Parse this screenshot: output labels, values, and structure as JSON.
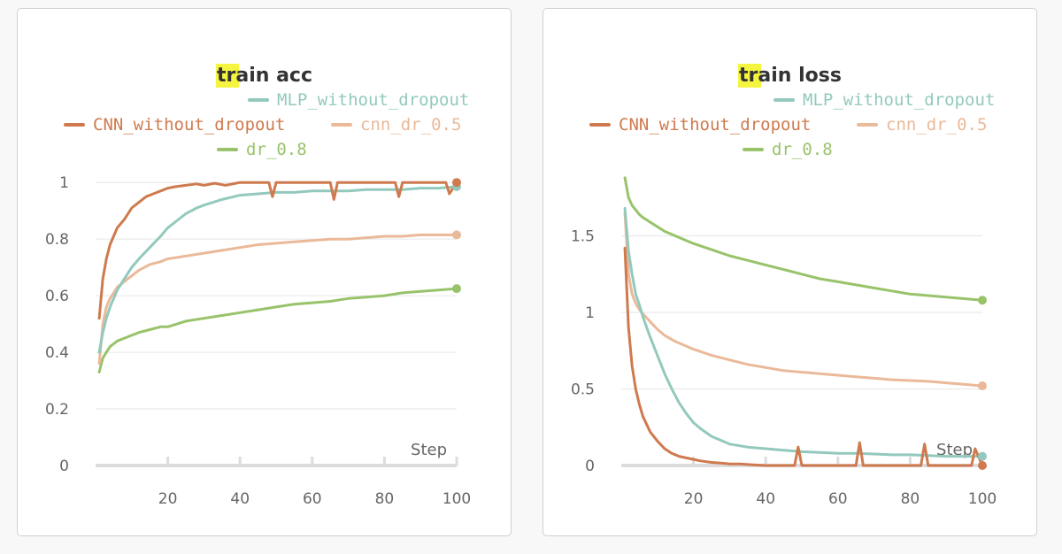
{
  "colors": {
    "MLP_without_dropout": "#93c9bd",
    "CNN_without_dropout": "#cf7a4e",
    "cnn_dr_0.5": "#eab999",
    "dr_0.8": "#98c36a",
    "highlight": "#f5f541"
  },
  "chart_data": [
    {
      "type": "line",
      "title": "train acc",
      "title_highlight": "tr",
      "title_rest": "ain acc",
      "xlabel": "Step",
      "ylabel": "",
      "xlim": [
        0,
        100
      ],
      "ylim": [
        0,
        1.06
      ],
      "xticks": [
        20,
        40,
        60,
        80,
        100
      ],
      "yticks": [
        0,
        0.2,
        0.4,
        0.6,
        0.8,
        1
      ],
      "ytick_labels": [
        "0",
        "0.2",
        "0.4",
        "0.6",
        "0.8",
        "1"
      ],
      "grid": true,
      "legend": "top-center",
      "series": [
        {
          "name": "MLP_without_dropout",
          "x": [
            1,
            2,
            3,
            4,
            5,
            6,
            8,
            10,
            12,
            15,
            18,
            20,
            22,
            25,
            28,
            30,
            35,
            40,
            45,
            50,
            55,
            60,
            65,
            70,
            75,
            80,
            85,
            90,
            95,
            100
          ],
          "y": [
            0.4,
            0.47,
            0.52,
            0.56,
            0.59,
            0.62,
            0.66,
            0.7,
            0.73,
            0.77,
            0.81,
            0.84,
            0.86,
            0.89,
            0.91,
            0.92,
            0.94,
            0.955,
            0.96,
            0.965,
            0.965,
            0.97,
            0.97,
            0.97,
            0.975,
            0.975,
            0.975,
            0.98,
            0.98,
            0.985
          ]
        },
        {
          "name": "CNN_without_dropout",
          "x": [
            1,
            2,
            3,
            4,
            5,
            6,
            8,
            10,
            12,
            14,
            16,
            18,
            20,
            22,
            25,
            28,
            30,
            33,
            36,
            40,
            45,
            48,
            49,
            50,
            52,
            55,
            60,
            65,
            66,
            67,
            70,
            75,
            80,
            83,
            84,
            85,
            90,
            95,
            97,
            98,
            100
          ],
          "y": [
            0.52,
            0.66,
            0.73,
            0.78,
            0.81,
            0.84,
            0.87,
            0.91,
            0.93,
            0.95,
            0.96,
            0.97,
            0.98,
            0.985,
            0.99,
            0.995,
            0.99,
            0.997,
            0.99,
            1.0,
            1.0,
            1.0,
            0.95,
            1.0,
            1.0,
            1.0,
            1.0,
            1.0,
            0.94,
            1.0,
            1.0,
            1.0,
            1.0,
            1.0,
            0.95,
            1.0,
            1.0,
            1.0,
            1.0,
            0.96,
            1.0
          ]
        },
        {
          "name": "cnn_dr_0.5",
          "x": [
            1,
            2,
            3,
            4,
            5,
            6,
            8,
            10,
            12,
            15,
            18,
            20,
            25,
            30,
            35,
            40,
            45,
            50,
            55,
            60,
            65,
            70,
            75,
            80,
            85,
            90,
            95,
            100
          ],
          "y": [
            0.36,
            0.5,
            0.56,
            0.59,
            0.61,
            0.63,
            0.65,
            0.67,
            0.69,
            0.71,
            0.72,
            0.73,
            0.74,
            0.75,
            0.76,
            0.77,
            0.78,
            0.785,
            0.79,
            0.795,
            0.8,
            0.8,
            0.805,
            0.81,
            0.81,
            0.815,
            0.815,
            0.815
          ]
        },
        {
          "name": "dr_0.8",
          "x": [
            1,
            2,
            3,
            4,
            5,
            6,
            8,
            10,
            12,
            15,
            18,
            20,
            25,
            30,
            35,
            40,
            45,
            50,
            55,
            60,
            65,
            70,
            75,
            80,
            85,
            90,
            95,
            100
          ],
          "y": [
            0.33,
            0.38,
            0.4,
            0.42,
            0.43,
            0.44,
            0.45,
            0.46,
            0.47,
            0.48,
            0.49,
            0.49,
            0.51,
            0.52,
            0.53,
            0.54,
            0.55,
            0.56,
            0.57,
            0.575,
            0.58,
            0.59,
            0.595,
            0.6,
            0.61,
            0.615,
            0.62,
            0.625
          ]
        }
      ]
    },
    {
      "type": "line",
      "title": "train loss",
      "title_highlight": "tr",
      "title_rest": "ain loss",
      "xlabel": "Step",
      "ylabel": "",
      "xlim": [
        0,
        100
      ],
      "ylim": [
        0,
        1.96
      ],
      "xticks": [
        20,
        40,
        60,
        80,
        100
      ],
      "yticks": [
        0,
        0.5,
        1,
        1.5
      ],
      "ytick_labels": [
        "0",
        "0.5",
        "1",
        "1.5"
      ],
      "grid": true,
      "legend": "top-center",
      "series": [
        {
          "name": "MLP_without_dropout",
          "x": [
            1,
            2,
            3,
            4,
            5,
            6,
            8,
            10,
            12,
            14,
            16,
            18,
            20,
            22,
            25,
            28,
            30,
            35,
            40,
            45,
            50,
            55,
            60,
            65,
            70,
            75,
            80,
            85,
            90,
            95,
            100
          ],
          "y": [
            1.68,
            1.4,
            1.25,
            1.12,
            1.05,
            0.97,
            0.84,
            0.72,
            0.6,
            0.5,
            0.41,
            0.34,
            0.28,
            0.24,
            0.19,
            0.16,
            0.14,
            0.12,
            0.11,
            0.1,
            0.09,
            0.085,
            0.08,
            0.08,
            0.075,
            0.07,
            0.07,
            0.065,
            0.06,
            0.06,
            0.06
          ]
        },
        {
          "name": "CNN_without_dropout",
          "x": [
            1,
            2,
            3,
            4,
            5,
            6,
            8,
            10,
            12,
            14,
            16,
            18,
            20,
            22,
            25,
            28,
            30,
            33,
            36,
            40,
            45,
            48,
            49,
            50,
            55,
            60,
            65,
            66,
            67,
            70,
            75,
            80,
            83,
            84,
            85,
            90,
            95,
            97,
            98,
            100
          ],
          "y": [
            1.42,
            0.9,
            0.65,
            0.5,
            0.4,
            0.32,
            0.22,
            0.16,
            0.11,
            0.08,
            0.06,
            0.05,
            0.04,
            0.03,
            0.02,
            0.015,
            0.01,
            0.01,
            0.005,
            0.0,
            0.0,
            0.0,
            0.12,
            0.0,
            0.0,
            0.0,
            0.0,
            0.15,
            0.0,
            0.0,
            0.0,
            0.0,
            0.0,
            0.14,
            0.0,
            0.0,
            0.0,
            0.0,
            0.11,
            0.0
          ]
        },
        {
          "name": "cnn_dr_0.5",
          "x": [
            1,
            2,
            3,
            4,
            5,
            6,
            8,
            10,
            12,
            15,
            18,
            20,
            25,
            30,
            35,
            40,
            45,
            50,
            55,
            60,
            65,
            70,
            75,
            80,
            85,
            90,
            95,
            100
          ],
          "y": [
            1.65,
            1.25,
            1.12,
            1.06,
            1.02,
            0.99,
            0.94,
            0.89,
            0.85,
            0.81,
            0.78,
            0.76,
            0.72,
            0.69,
            0.66,
            0.64,
            0.62,
            0.61,
            0.6,
            0.59,
            0.58,
            0.57,
            0.56,
            0.555,
            0.55,
            0.54,
            0.53,
            0.52
          ]
        },
        {
          "name": "dr_0.8",
          "x": [
            1,
            2,
            3,
            4,
            5,
            6,
            8,
            10,
            12,
            15,
            18,
            20,
            25,
            30,
            35,
            40,
            45,
            50,
            55,
            60,
            65,
            70,
            75,
            80,
            85,
            90,
            95,
            100
          ],
          "y": [
            1.88,
            1.75,
            1.7,
            1.67,
            1.64,
            1.62,
            1.59,
            1.56,
            1.53,
            1.5,
            1.47,
            1.45,
            1.41,
            1.37,
            1.34,
            1.31,
            1.28,
            1.25,
            1.22,
            1.2,
            1.18,
            1.16,
            1.14,
            1.12,
            1.11,
            1.1,
            1.09,
            1.08
          ]
        }
      ]
    }
  ]
}
